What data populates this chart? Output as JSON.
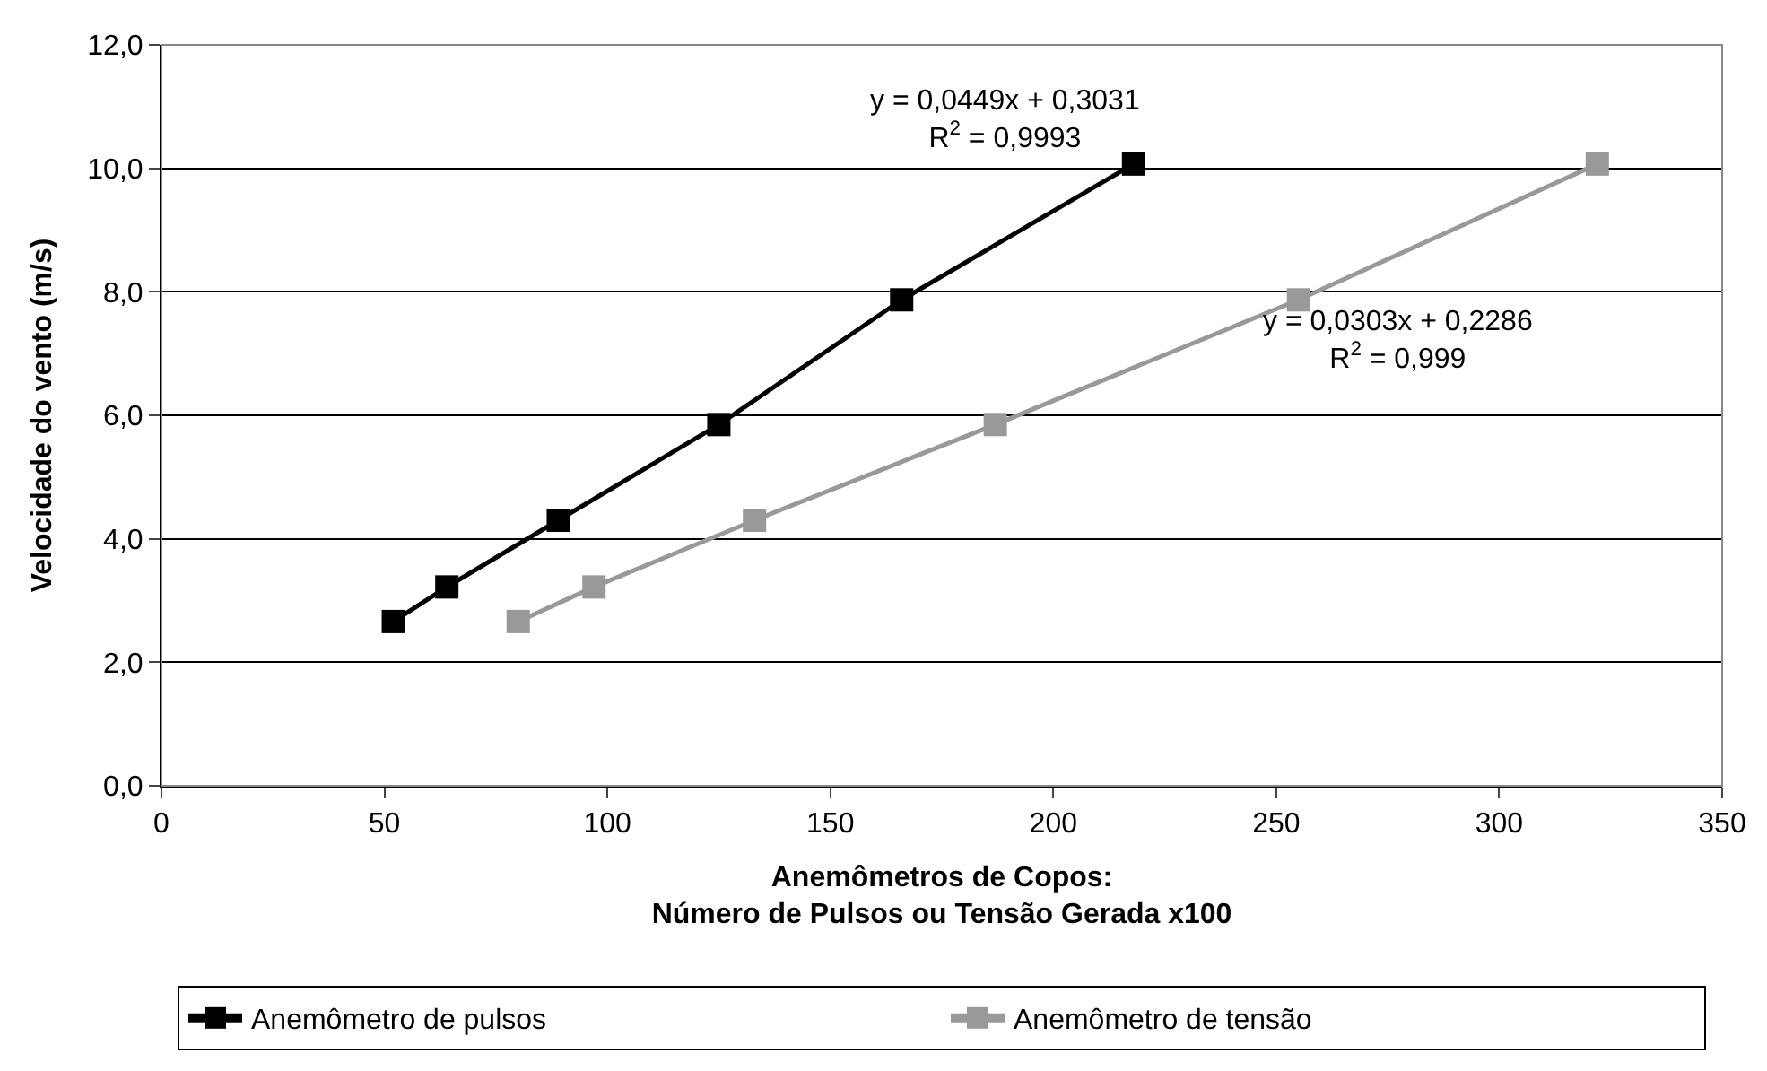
{
  "chart_data": {
    "type": "line",
    "xlabel": "Anemômetros de Copos:\nNúmero de Pulsos ou Tensão Gerada x100",
    "ylabel": "Velocidade do vento (m/s)",
    "series": [
      {
        "name": "Anemômetro de pulsos",
        "color": "#000000",
        "x": [
          52,
          64,
          89,
          125,
          166,
          218
        ],
        "values": [
          2.66,
          3.22,
          4.3,
          5.85,
          7.87,
          10.07
        ]
      },
      {
        "name": "Anemômetro de tensão",
        "color": "#999999",
        "x": [
          80,
          97,
          133,
          187,
          255,
          322
        ],
        "values": [
          2.66,
          3.22,
          4.3,
          5.85,
          7.87,
          10.07
        ]
      }
    ],
    "annotations": [
      "y = 0,0449x + 0,3031\nR$^{2}$ = 0,9993",
      "y = 0,0303x + 0,2286\nR$^{2}$ = 0,999"
    ],
    "xlim": [
      0,
      350
    ],
    "xticks": [
      0,
      50,
      100,
      150,
      200,
      250,
      300,
      350
    ],
    "ylim": [
      0,
      12
    ],
    "yticks": [
      {
        "value": 0,
        "label": "0,0"
      },
      {
        "value": 2,
        "label": "2,0"
      },
      {
        "value": 4,
        "label": "4,0"
      },
      {
        "value": 6,
        "label": "6,0"
      },
      {
        "value": 8,
        "label": "8,0"
      },
      {
        "value": 10,
        "label": "10,0"
      },
      {
        "value": 12,
        "label": "12,0"
      }
    ],
    "grid": "y",
    "legend": "bottom",
    "marker": "square",
    "line_style": "solid"
  }
}
